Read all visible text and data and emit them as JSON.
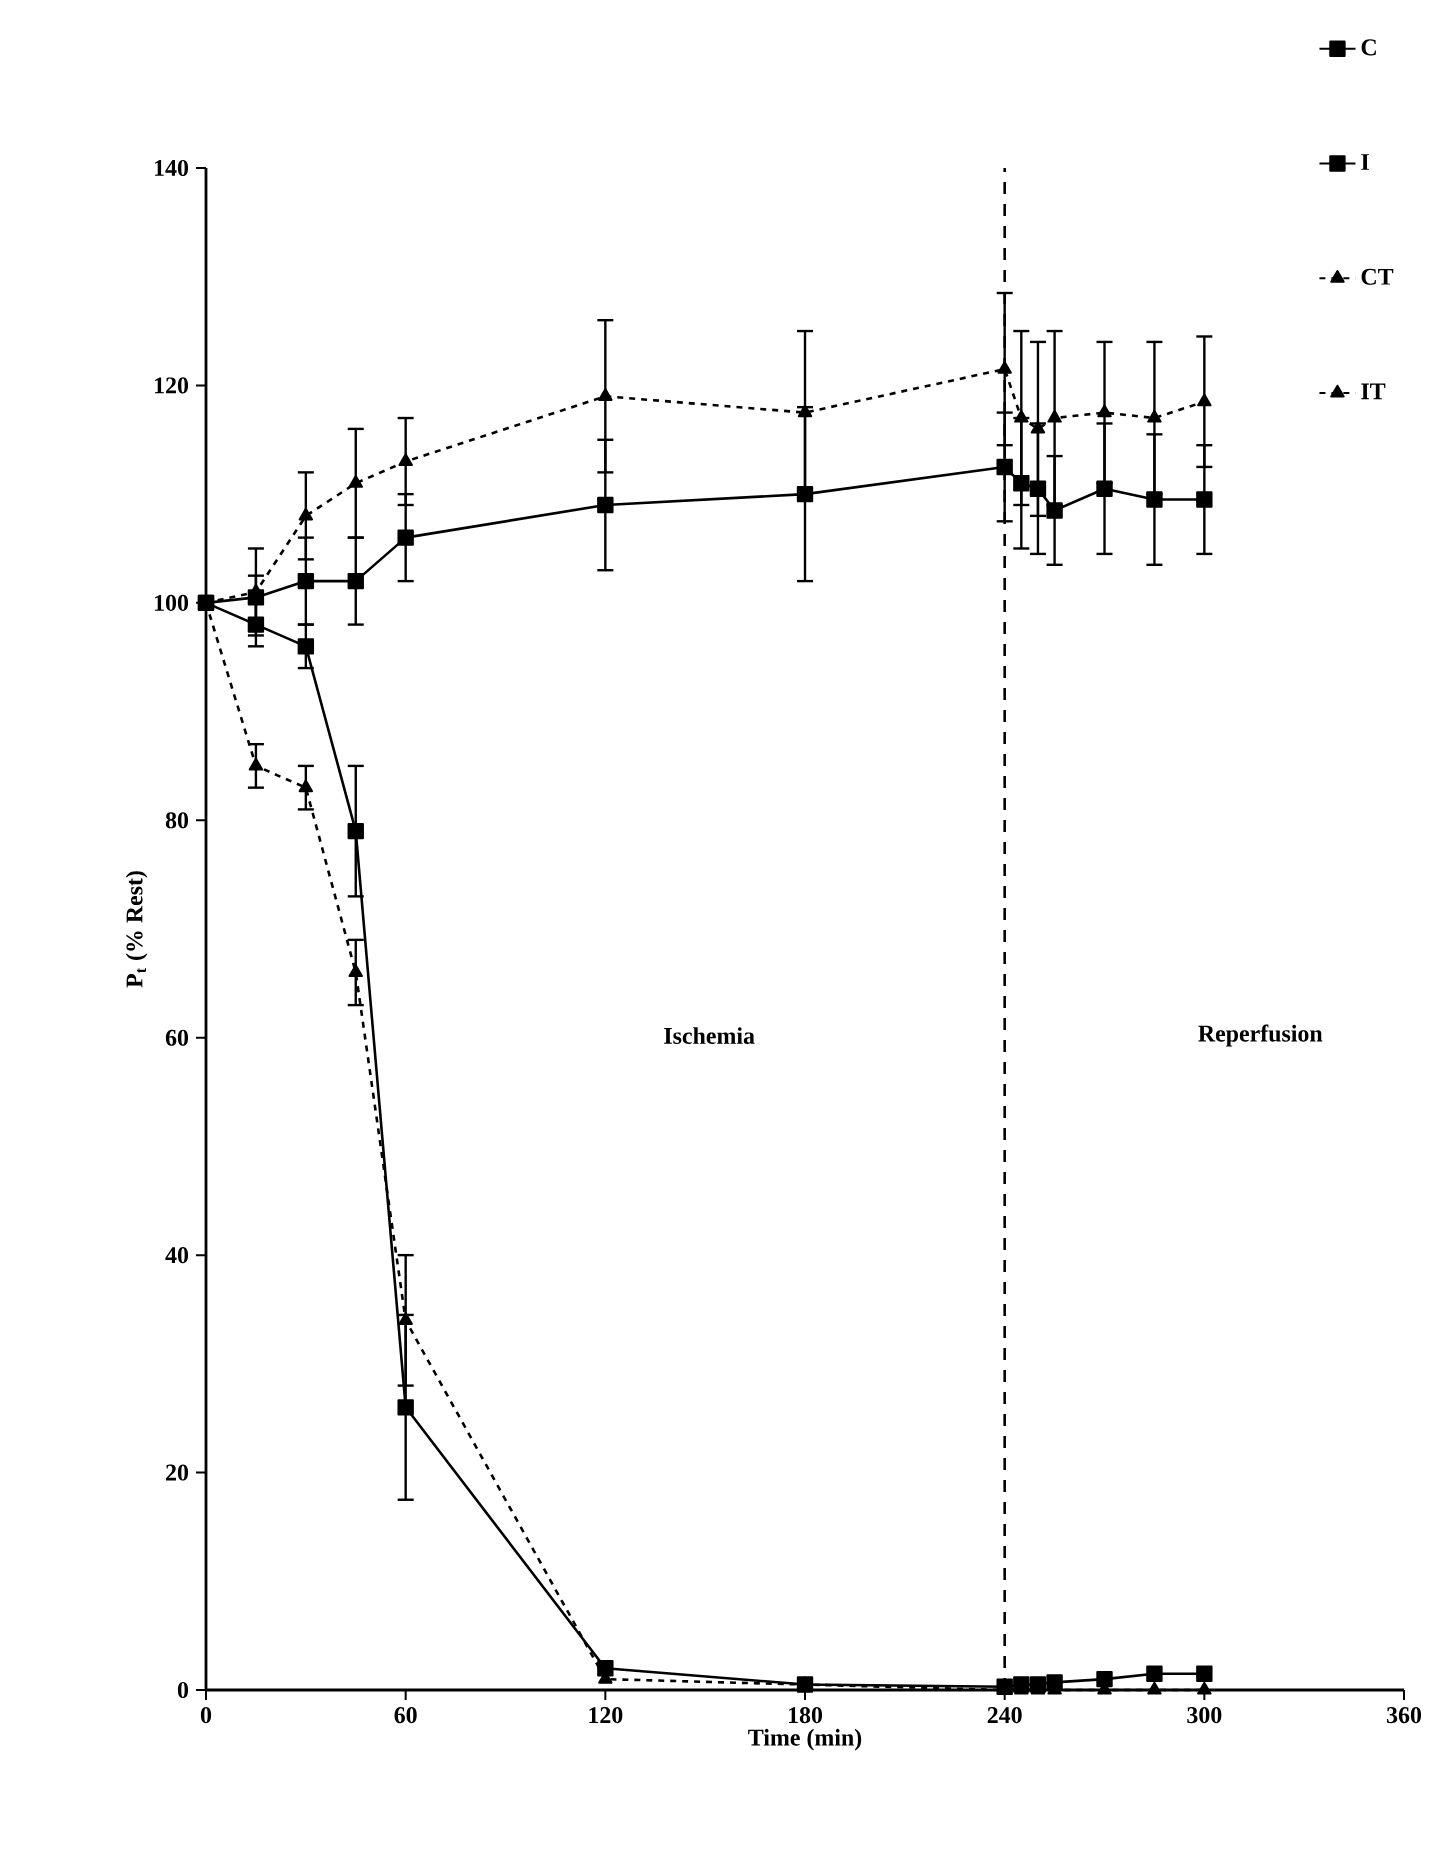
{
  "chart_data": {
    "type": "line",
    "xlabel": "Time (min)",
    "ylabel": "P$_{t}$ (% Rest)",
    "x": [
      0,
      15,
      30,
      45,
      60,
      120,
      180,
      240,
      245,
      250,
      255,
      270,
      285,
      300
    ],
    "series": [
      {
        "name": "C",
        "color": "#000000",
        "marker": "square",
        "line_style": "solid",
        "values": [
          100,
          100.5,
          102,
          102,
          106,
          109,
          110,
          112.5,
          111,
          110.5,
          108.5,
          110.5,
          109.5,
          109.5
        ],
        "errors": [
          null,
          2,
          4,
          4,
          4,
          6,
          8,
          5,
          6,
          6,
          5,
          6,
          6,
          5
        ]
      },
      {
        "name": "I",
        "color": "#000000",
        "marker": "square",
        "line_style": "solid",
        "values": [
          100,
          98,
          96,
          79,
          26,
          2,
          0.5,
          0.3,
          0.5,
          0.5,
          0.7,
          1,
          1.5,
          1.5
        ],
        "errors": [
          null,
          2,
          2,
          6,
          8.5,
          null,
          null,
          null,
          null,
          null,
          null,
          null,
          null,
          null
        ]
      },
      {
        "name": "CT",
        "color": "#000000",
        "marker": "triangle",
        "line_style": "dashed",
        "values": [
          100,
          101,
          108,
          111,
          113,
          119,
          117.5,
          121.5,
          117,
          116,
          117,
          117.5,
          117,
          118.5
        ],
        "errors": [
          null,
          4,
          4,
          5,
          4,
          7,
          7.5,
          7,
          8,
          8,
          8,
          6.5,
          7,
          6
        ]
      },
      {
        "name": "IT",
        "color": "#000000",
        "marker": "triangle",
        "line_style": "dashed",
        "values": [
          100,
          85,
          83,
          66,
          34,
          1,
          0.5,
          0,
          0,
          0,
          0,
          0,
          0,
          0
        ],
        "errors": [
          null,
          2,
          2,
          3,
          6,
          null,
          null,
          null,
          null,
          null,
          null,
          null,
          null,
          null
        ]
      }
    ],
    "xlim": [
      0,
      360
    ],
    "xticks": [
      0,
      60,
      120,
      180,
      240,
      300,
      360
    ],
    "ylim": [
      0,
      140
    ],
    "yticks": [
      0,
      20,
      40,
      60,
      80,
      100,
      120,
      140
    ],
    "ref_lines": [
      {
        "axis": "x",
        "value": 240,
        "line_style": "dashed"
      }
    ],
    "annotations": [
      "Ischemia",
      "Reperfusion"
    ],
    "legend": "top right",
    "grid": false
  }
}
